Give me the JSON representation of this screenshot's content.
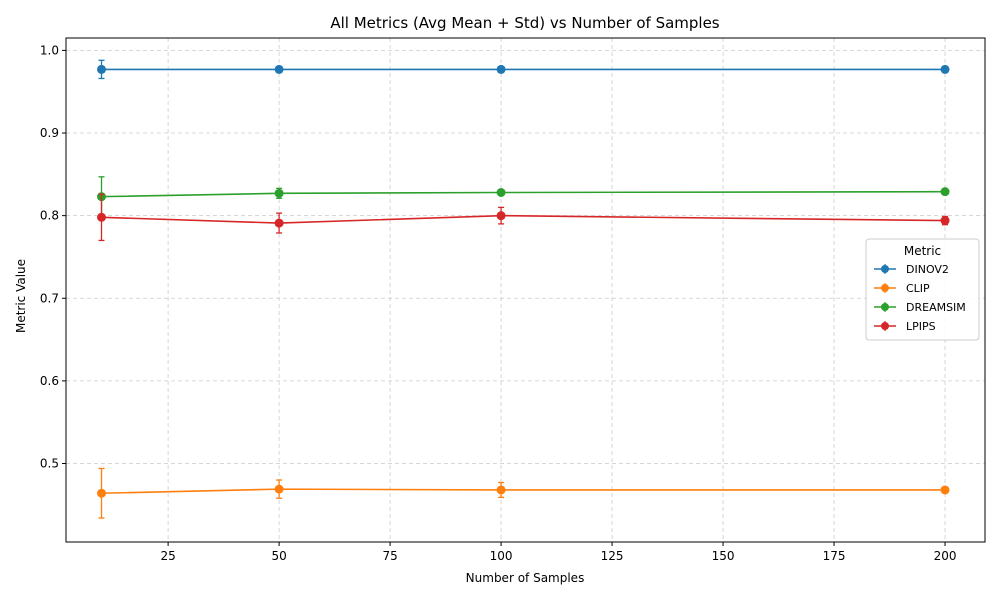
{
  "chart_data": {
    "type": "line",
    "title": "All Metrics (Avg Mean + Std) vs Number of Samples",
    "xlabel": "Number of Samples",
    "ylabel": "Metric Value",
    "xlim": [
      2,
      209
    ],
    "ylim": [
      0.405,
      1.015
    ],
    "xticks": [
      25,
      50,
      75,
      100,
      125,
      150,
      175,
      200
    ],
    "yticks": [
      0.5,
      0.6,
      0.7,
      0.8,
      0.9,
      1.0
    ],
    "xtick_labels": [
      "25",
      "50",
      "75",
      "100",
      "125",
      "150",
      "175",
      "200"
    ],
    "ytick_labels": [
      "0.5",
      "0.6",
      "0.7",
      "0.8",
      "0.9",
      "1.0"
    ],
    "grid": true,
    "legend": {
      "title": "Metric",
      "placement": "center-right"
    },
    "x": [
      10,
      50,
      100,
      200
    ],
    "series": [
      {
        "name": "DINOV2",
        "color": "#1f77b4",
        "values": [
          0.977,
          0.977,
          0.977,
          0.977
        ],
        "std": [
          0.011,
          0.002,
          0.002,
          0.002
        ]
      },
      {
        "name": "CLIP",
        "color": "#ff7f0e",
        "values": [
          0.464,
          0.469,
          0.468,
          0.468
        ],
        "std": [
          0.03,
          0.011,
          0.009,
          0.003
        ]
      },
      {
        "name": "DREAMSIM",
        "color": "#2ca02c",
        "values": [
          0.823,
          0.827,
          0.828,
          0.829
        ],
        "std": [
          0.024,
          0.006,
          0.002,
          0.002
        ]
      },
      {
        "name": "LPIPS",
        "color": "#d62728",
        "values": [
          0.798,
          0.791,
          0.8,
          0.794
        ],
        "std": [
          0.028,
          0.012,
          0.01,
          0.005
        ]
      }
    ]
  }
}
